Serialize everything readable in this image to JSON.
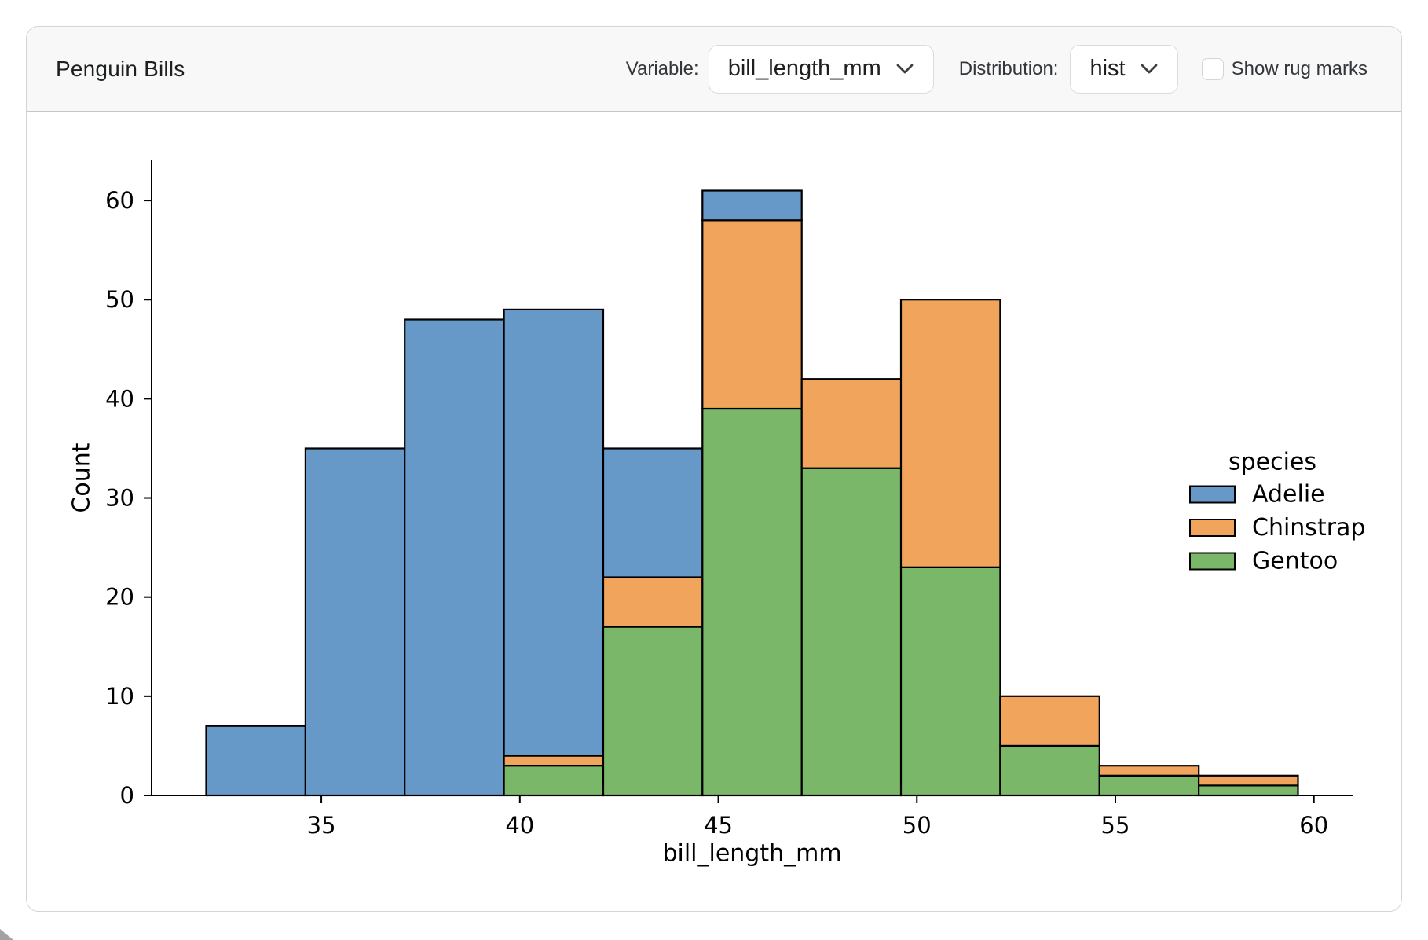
{
  "card": {
    "title": "Penguin Bills",
    "controls": {
      "variable_label": "Variable:",
      "variable_value": "bill_length_mm",
      "distribution_label": "Distribution:",
      "distribution_value": "hist",
      "rug_checkbox_label": "Show rug marks",
      "rug_checked": false
    }
  },
  "chart_data": {
    "type": "bar",
    "subtype": "stacked-histogram",
    "title": "",
    "xlabel": "bill_length_mm",
    "ylabel": "Count",
    "legend_title": "species",
    "legend_position": "right",
    "grid": false,
    "bin_edges": [
      32.1,
      34.6,
      37.1,
      39.6,
      42.1,
      44.6,
      47.1,
      49.6,
      52.1,
      54.6,
      57.1,
      59.6
    ],
    "series": [
      {
        "name": "Adelie",
        "color": "#6698C8",
        "values": [
          7,
          35,
          48,
          45,
          13,
          3,
          0,
          0,
          0,
          0,
          0
        ]
      },
      {
        "name": "Chinstrap",
        "color": "#F0A45C",
        "values": [
          0,
          0,
          0,
          1,
          5,
          19,
          9,
          27,
          5,
          1,
          1
        ]
      },
      {
        "name": "Gentoo",
        "color": "#7AB768",
        "values": [
          0,
          0,
          0,
          3,
          17,
          39,
          33,
          23,
          5,
          2,
          1
        ]
      }
    ],
    "stack_order_bottom_to_top": [
      "Gentoo",
      "Chinstrap",
      "Adelie"
    ],
    "bar_totals": [
      7,
      35,
      48,
      49,
      35,
      61,
      42,
      50,
      10,
      3,
      2
    ],
    "x_ticks": [
      35,
      40,
      45,
      50,
      55,
      60
    ],
    "y_ticks": [
      0,
      10,
      20,
      30,
      40,
      50,
      60
    ],
    "xlim": [
      30.725,
      60.975
    ],
    "ylim": [
      0,
      64.05
    ],
    "edge_color": "#000000",
    "axis_color": "#000000"
  }
}
